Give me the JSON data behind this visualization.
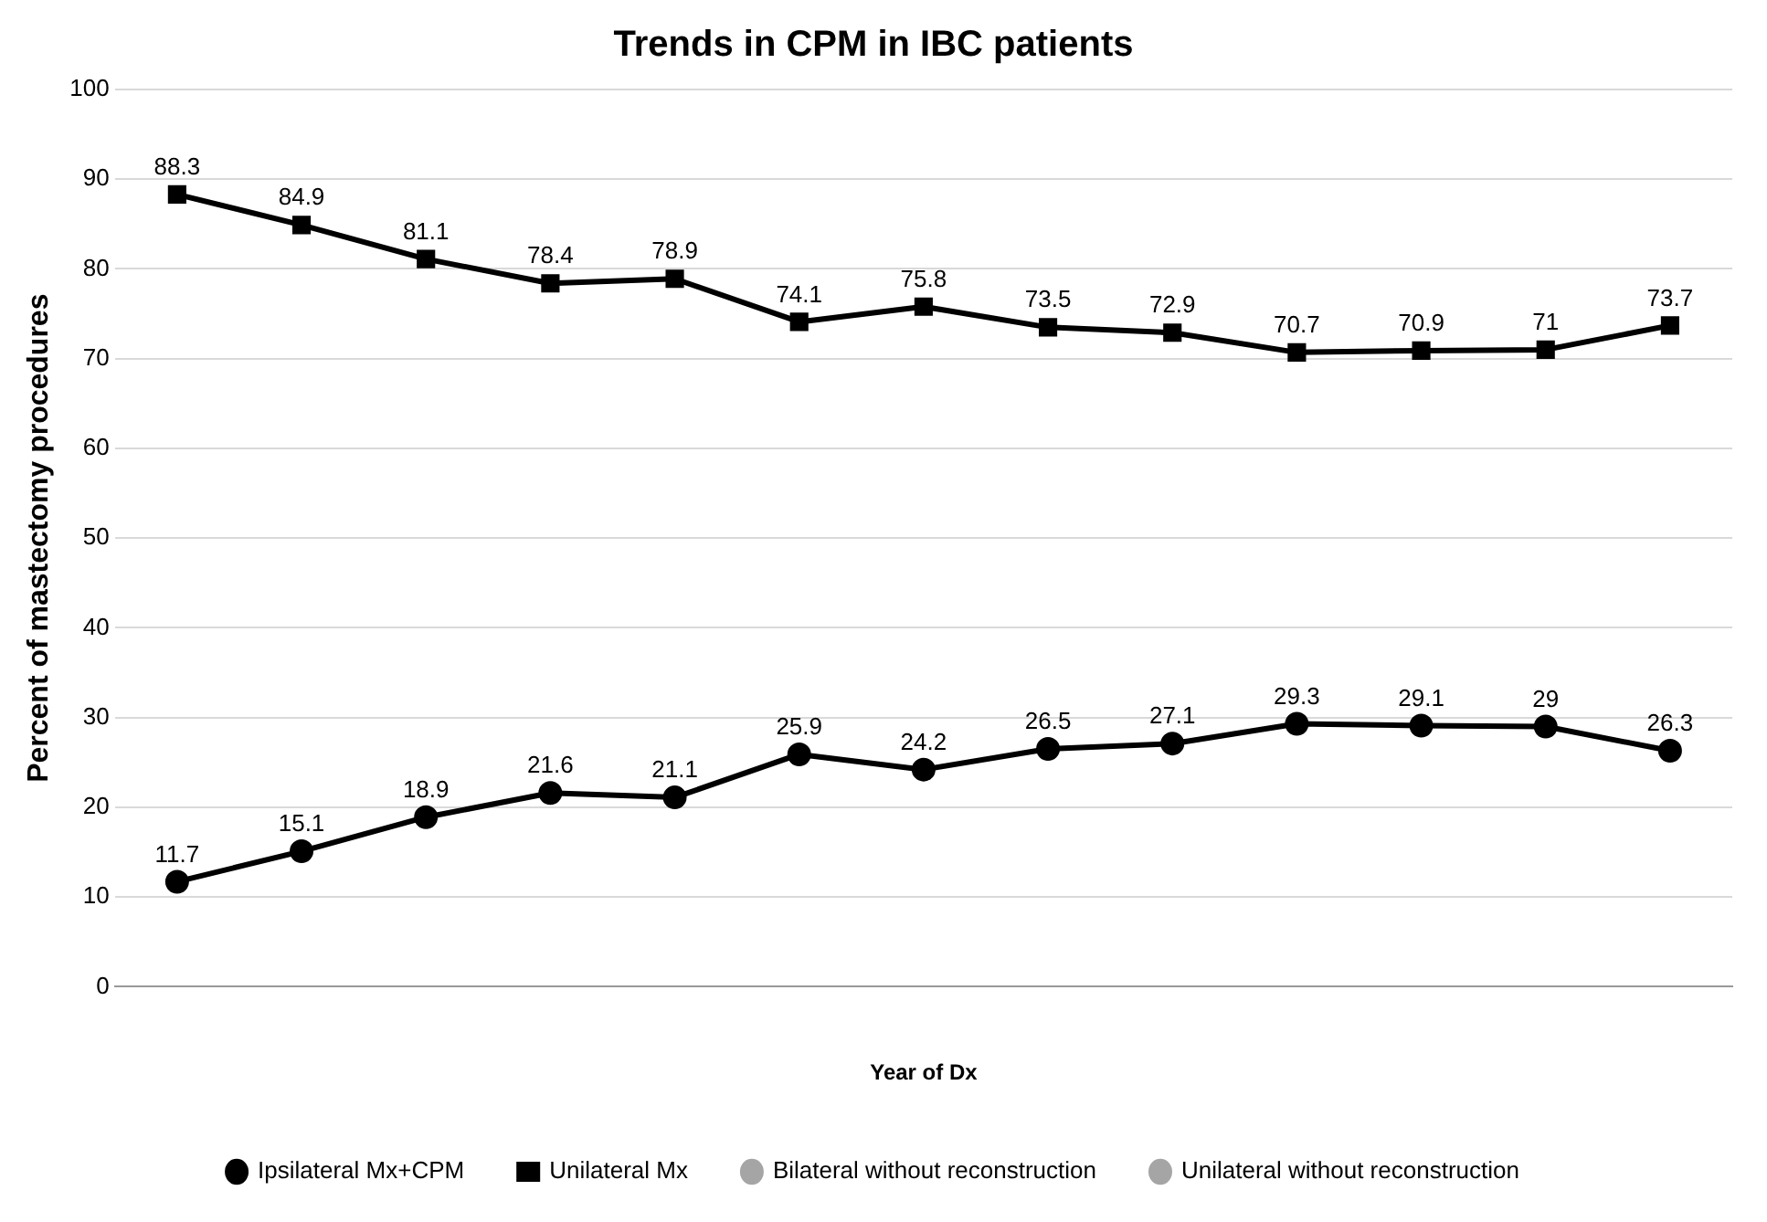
{
  "chart_data": {
    "type": "line",
    "title": "Trends in CPM in IBC patients",
    "xlabel": "Year of Dx",
    "ylabel": "Percent of mastectomy procedures",
    "categories": [
      null,
      null,
      null,
      null,
      null,
      null,
      null,
      null,
      null,
      null,
      null,
      null,
      null
    ],
    "series": [
      {
        "name": "Ipsilateral Mx+CPM",
        "color": "#000000",
        "marker": "circle",
        "values": [
          11.7,
          15.1,
          18.9,
          21.6,
          21.1,
          25.9,
          24.2,
          26.5,
          27.1,
          29.3,
          29.1,
          29,
          26.3
        ]
      },
      {
        "name": "Unilateral Mx",
        "color": "#000000",
        "marker": "square",
        "values": [
          88.3,
          84.9,
          81.1,
          78.4,
          78.9,
          74.1,
          75.8,
          73.5,
          72.9,
          70.7,
          70.9,
          71,
          73.7
        ]
      },
      {
        "name": "Bilateral without reconstruction",
        "color": "#a5a5a5",
        "marker": "circle",
        "values": [
          null,
          null,
          null,
          null,
          null,
          null,
          null,
          null,
          null,
          null,
          null,
          null,
          null
        ]
      },
      {
        "name": "Unilateral without reconstruction",
        "color": "#a5a5a5",
        "marker": "circle",
        "values": [
          null,
          null,
          null,
          null,
          null,
          null,
          null,
          null,
          null,
          null,
          null,
          null,
          null
        ]
      }
    ],
    "ylim": [
      0,
      100
    ],
    "yticks": [
      0,
      10,
      20,
      30,
      40,
      50,
      60,
      70,
      80,
      90,
      100
    ],
    "grid": "y",
    "legend": "bottom",
    "data_labels": true,
    "line_style": "solid"
  }
}
